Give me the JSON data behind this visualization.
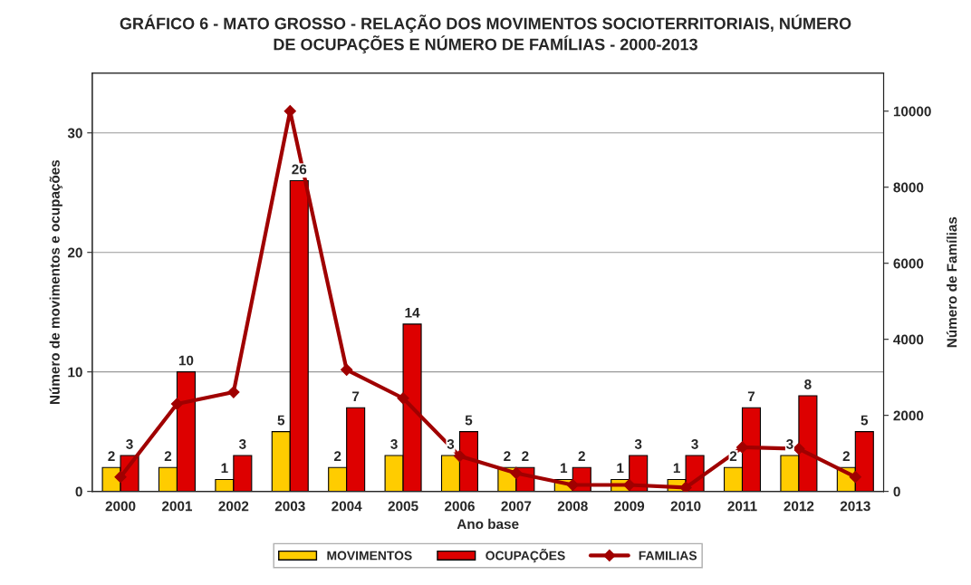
{
  "chart_data": {
    "type": "bar",
    "title": "GRÁFICO 6 - MATO GROSSO - RELAÇÃO DOS MOVIMENTOS SOCIOTERRITORIAIS, NÚMERO\nDE OCUPAÇÕES E NÚMERO DE FAMÍLIAS - 2000-2013",
    "xlabel": "Ano base",
    "ylabel": "Número de movimentos e ocupações",
    "y2label": "Número de Famílias",
    "categories": [
      "2000",
      "2001",
      "2002",
      "2003",
      "2004",
      "2005",
      "2006",
      "2007",
      "2008",
      "2009",
      "2010",
      "2011",
      "2012",
      "2013"
    ],
    "series": [
      {
        "name": "MOVIMENTOS",
        "color": "#ffcc00",
        "values": [
          2,
          2,
          1,
          5,
          2,
          3,
          3,
          2,
          1,
          1,
          1,
          2,
          3,
          2
        ],
        "value_labels": [
          "2",
          "2",
          "1",
          "5",
          "2",
          "3",
          "3",
          "2",
          "1",
          "1",
          "1",
          "2",
          "3",
          "2"
        ]
      },
      {
        "name": "OCUPAÇÕES",
        "color": "#dd0000",
        "values": [
          3,
          10,
          3,
          26,
          7,
          14,
          5,
          2,
          2,
          3,
          3,
          7,
          8,
          5
        ],
        "value_labels": [
          "3",
          "10",
          "3",
          "26",
          "7",
          "14",
          "5",
          "2",
          "2",
          "3",
          "3",
          "7",
          "8",
          "5"
        ]
      },
      {
        "name": "FAMILIAS",
        "type": "line",
        "axis": "y2",
        "color": "#a00000",
        "marker": "diamond",
        "values": [
          380,
          2300,
          2610,
          10000,
          3200,
          2450,
          930,
          480,
          170,
          170,
          100,
          1160,
          1120,
          380
        ]
      }
    ],
    "ylim": [
      0,
      35
    ],
    "yticks": [
      0,
      10,
      20,
      30
    ],
    "y2lim": [
      0,
      11000
    ],
    "y2ticks": [
      0,
      2000,
      4000,
      6000,
      8000,
      10000
    ],
    "grid": "y",
    "legend": "bottom"
  }
}
